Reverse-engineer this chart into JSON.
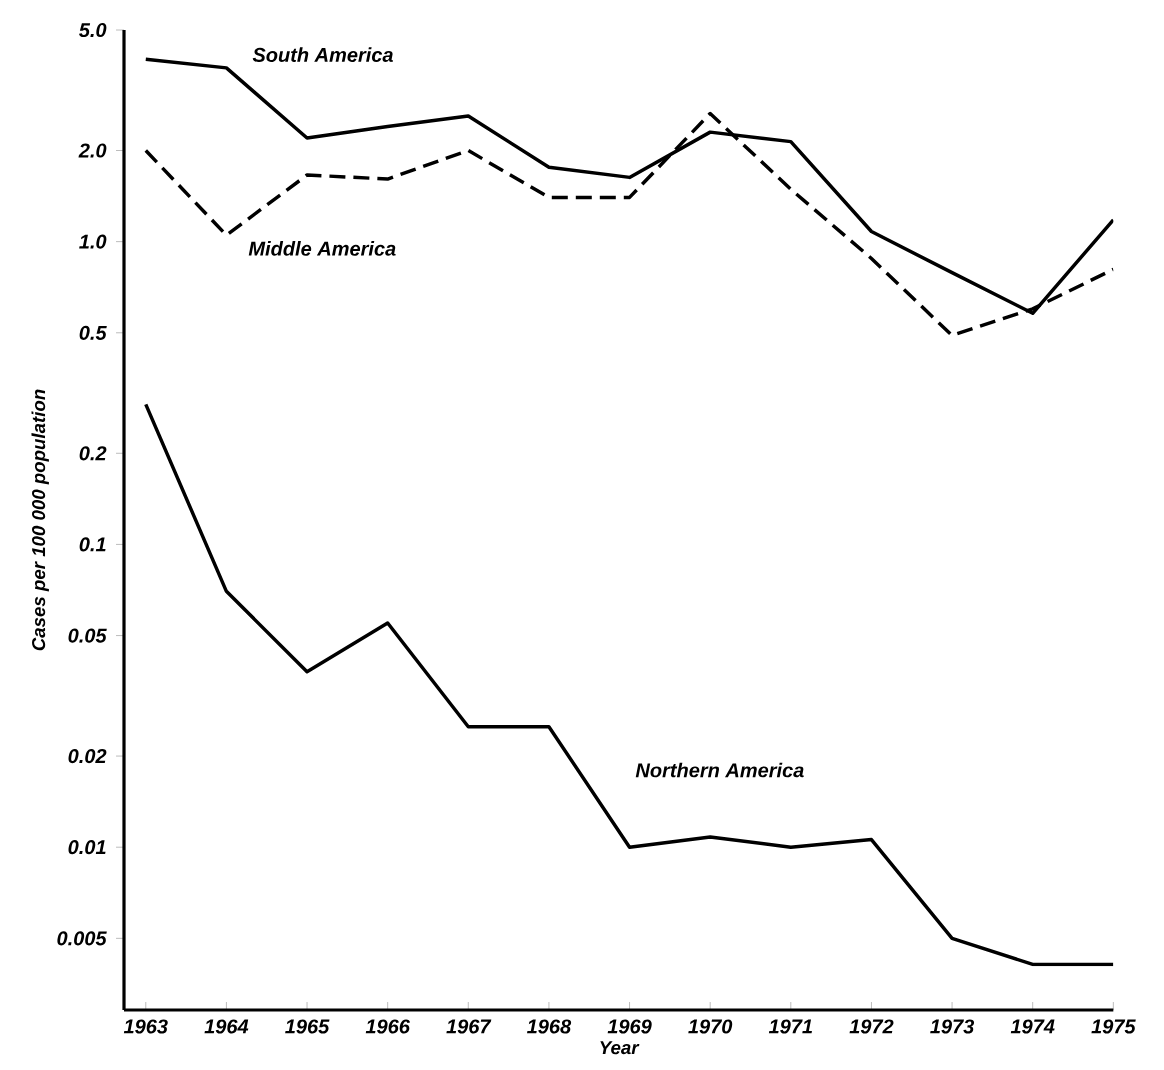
{
  "chart_data": {
    "type": "line",
    "xlabel": "Year",
    "ylabel": "Cases per 100 000 population",
    "x": [
      1963,
      1964,
      1965,
      1966,
      1967,
      1968,
      1969,
      1970,
      1971,
      1972,
      1973,
      1974,
      1975
    ],
    "xlim": [
      1962.73,
      1975
    ],
    "xticks": [
      1963,
      1964,
      1965,
      1966,
      1967,
      1968,
      1969,
      1970,
      1971,
      1972,
      1973,
      1974,
      1975
    ],
    "ylim": [
      0.0029,
      5
    ],
    "log": "y",
    "yticks": [
      {
        "value": 5,
        "label": "5.0"
      },
      {
        "value": 2,
        "label": "2.0"
      },
      {
        "value": 1,
        "label": "1.0"
      },
      {
        "value": 0.5,
        "label": "0.5"
      },
      {
        "value": 0.2,
        "label": "0.2"
      },
      {
        "value": 0.1,
        "label": "0.1"
      },
      {
        "value": 0.05,
        "label": "0.05"
      },
      {
        "value": 0.02,
        "label": "0.02"
      },
      {
        "value": 0.01,
        "label": "0.01"
      },
      {
        "value": 0.005,
        "label": "0.005"
      }
    ],
    "grid": false,
    "legend": false,
    "marker": "none",
    "series": [
      {
        "name": "South America",
        "color": "#000000",
        "line_style": "solid",
        "values": [
          4.0,
          3.75,
          2.2,
          2.4,
          2.6,
          1.76,
          1.63,
          2.3,
          2.14,
          1.08,
          0.79,
          0.58,
          1.18
        ]
      },
      {
        "name": "Middle America",
        "color": "#000000",
        "line_style": "dashed",
        "values": [
          2.0,
          1.05,
          1.66,
          1.61,
          2.0,
          1.4,
          1.4,
          2.65,
          1.49,
          0.88,
          0.49,
          0.6,
          0.81
        ]
      },
      {
        "name": "Northern America",
        "color": "#000000",
        "line_style": "solid",
        "values": [
          0.29,
          0.07,
          0.038,
          0.055,
          0.025,
          0.025,
          0.01,
          0.0108,
          0.01,
          0.0106,
          0.005,
          0.0041,
          0.0041
        ]
      }
    ]
  }
}
